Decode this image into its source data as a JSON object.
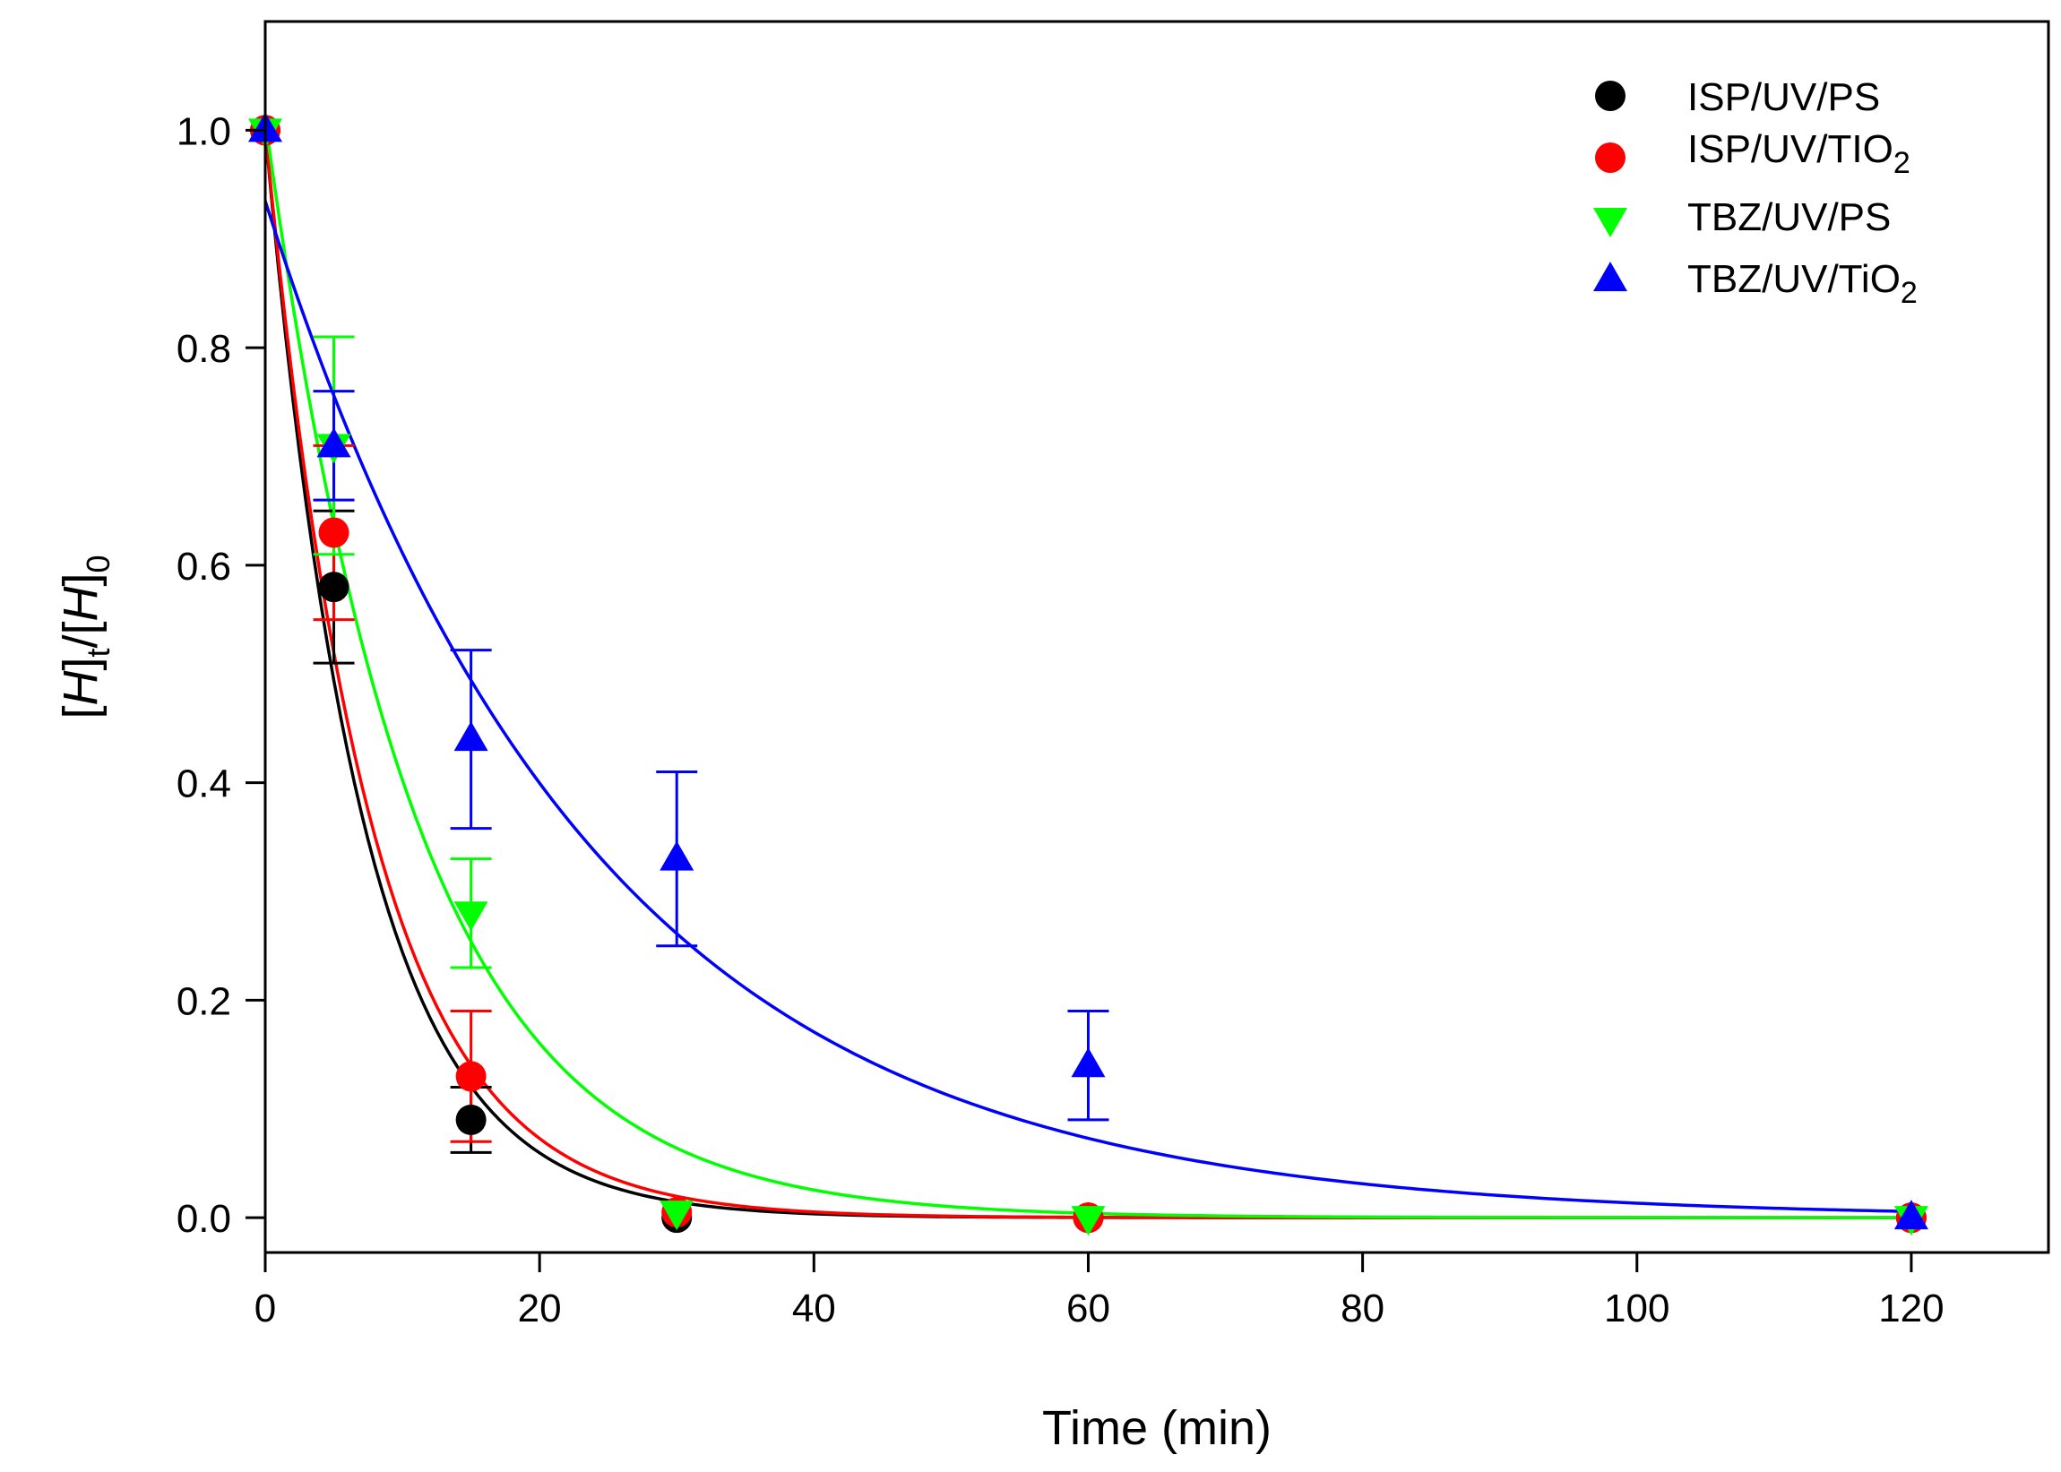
{
  "chart_data": {
    "type": "scatter",
    "title": "",
    "xlabel": "Time (min)",
    "ylabel_parts": [
      "[",
      "H",
      "]",
      "t",
      "/[",
      "H",
      "]",
      "0"
    ],
    "xlim": [
      0,
      130
    ],
    "ylim": [
      -0.032,
      1.1
    ],
    "xticks": [
      0,
      20,
      40,
      60,
      80,
      100,
      120
    ],
    "yticks": [
      0.0,
      0.2,
      0.4,
      0.6,
      0.8,
      1.0
    ],
    "xtick_labels": [
      "0",
      "20",
      "40",
      "60",
      "80",
      "100",
      "120"
    ],
    "ytick_labels": [
      "0.0",
      "0.2",
      "0.4",
      "0.6",
      "0.8",
      "1.0"
    ],
    "legend_position": "top-right",
    "series": [
      {
        "name": "ISP/UV/PS",
        "legend_main": "ISP/UV/PS",
        "legend_sub": "",
        "legend_tail": "",
        "color": "#000000",
        "marker": "circle",
        "x": [
          0,
          5,
          15,
          30,
          60,
          120
        ],
        "y": [
          1.0,
          0.58,
          0.09,
          0.0,
          0.0,
          0.0
        ],
        "err": [
          0,
          0.07,
          0.03,
          0,
          0,
          0
        ],
        "fit": {
          "a": 1.0,
          "k": 0.141,
          "c": 0.0
        }
      },
      {
        "name": "ISP/UV/TiO2",
        "legend_main": "ISP/UV/TIO",
        "legend_sub": "2",
        "legend_tail": "",
        "color": "#ff0000",
        "marker": "circle",
        "x": [
          0,
          5,
          15,
          30,
          60,
          120
        ],
        "y": [
          1.0,
          0.63,
          0.13,
          0.005,
          0.0,
          0.0
        ],
        "err": [
          0,
          0.08,
          0.06,
          0,
          0,
          0
        ],
        "fit": {
          "a": 1.0,
          "k": 0.131,
          "c": 0.0
        }
      },
      {
        "name": "TBZ/UV/PS",
        "legend_main": "TBZ/UV/PS",
        "legend_sub": "",
        "legend_tail": "",
        "color": "#00ff00",
        "marker": "triangle-down",
        "x": [
          0,
          5,
          15,
          30,
          60,
          120
        ],
        "y": [
          1.0,
          0.71,
          0.28,
          0.005,
          0.0,
          0.0
        ],
        "err": [
          0,
          0.1,
          0.05,
          0,
          0,
          0
        ],
        "fit": {
          "a": 1.01,
          "k": 0.092,
          "c": 0.0
        }
      },
      {
        "name": "TBZ/UV/TiO2",
        "legend_main": "TBZ/UV/TiO",
        "legend_sub": "2",
        "legend_tail": "",
        "color": "#0000ff",
        "marker": "triangle-up",
        "x": [
          0,
          5,
          15,
          30,
          60,
          120
        ],
        "y": [
          1.0,
          0.71,
          0.44,
          0.33,
          0.14,
          0.0
        ],
        "err": [
          0,
          0.05,
          0.082,
          0.08,
          0.05,
          0
        ],
        "fit": {
          "a": 0.935,
          "k": 0.0425,
          "c": 0.0
        }
      }
    ]
  }
}
